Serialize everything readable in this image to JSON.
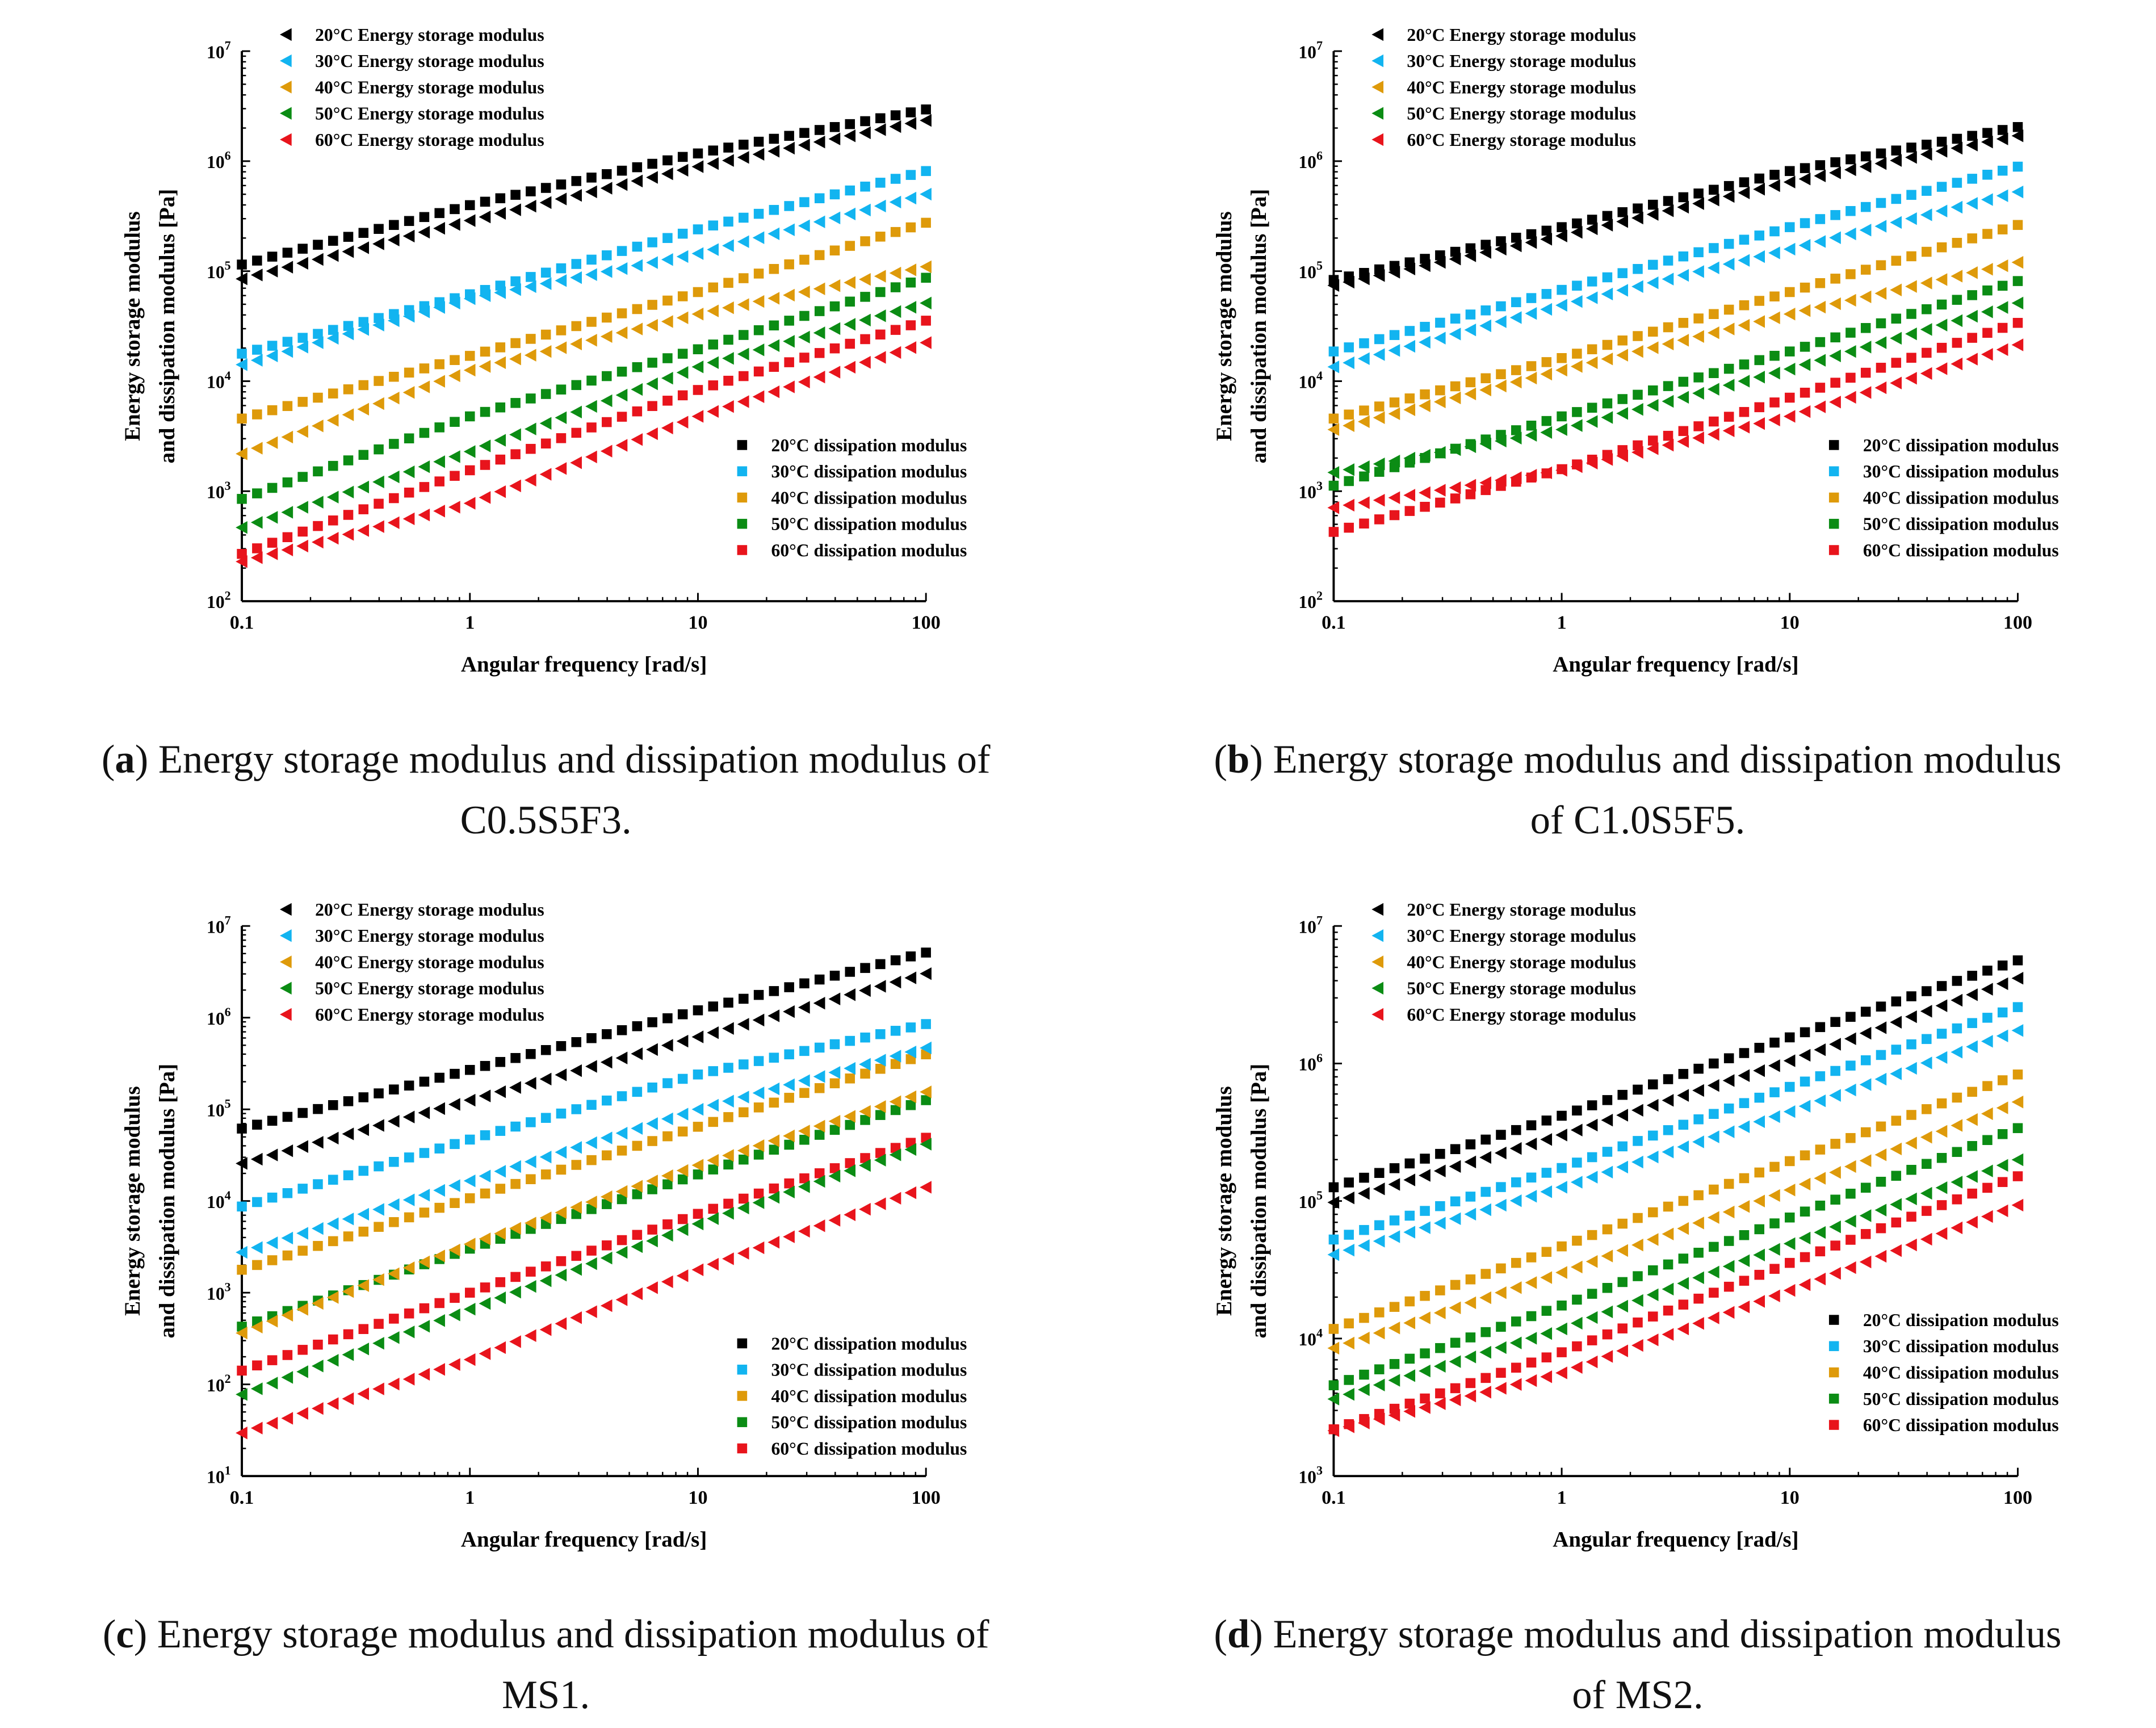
{
  "chart_data": [
    {
      "type": "scatter",
      "panel": "a",
      "caption_letter": "a",
      "caption_line1": " Energy storage modulus and dissipation modulus of",
      "caption_line2": "C0.5S5F3.",
      "xlabel": "Angular frequency [rad/s]",
      "ylabel_line1": "Energy storage modulus",
      "ylabel_line2": "and dissipation modulus [Pa]",
      "xscale": "log",
      "yscale": "log",
      "xlim": [
        0.1,
        100
      ],
      "ylim_log10": [
        2,
        7
      ],
      "x_ticks": [
        "0.1",
        "1",
        "10",
        "100"
      ],
      "y_tick_exponents": [
        "2",
        "3",
        "4",
        "5",
        "6",
        "7"
      ],
      "storage_legend_placement": "top-left",
      "dissipation_legend_placement": "bottom-right",
      "anchor_x": [
        0.1,
        1,
        10,
        100
      ],
      "series": [
        {
          "name": "20°C Energy storage modulus",
          "marker": "triangle-left",
          "color": "#000000",
          "log10_values": [
            4.93,
            5.46,
            5.95,
            6.37
          ]
        },
        {
          "name": "30°C Energy storage modulus",
          "marker": "triangle-left",
          "color": "#12b4f0",
          "log10_values": [
            4.15,
            4.75,
            5.16,
            5.7
          ]
        },
        {
          "name": "40°C Energy storage modulus",
          "marker": "triangle-left",
          "color": "#de9a0a",
          "log10_values": [
            3.34,
            4.1,
            4.61,
            5.04
          ]
        },
        {
          "name": "50°C Energy storage modulus",
          "marker": "triangle-left",
          "color": "#0b8c14",
          "log10_values": [
            2.67,
            3.36,
            4.13,
            4.71
          ]
        },
        {
          "name": "60°C Energy storage modulus",
          "marker": "triangle-left",
          "color": "#e8141c",
          "log10_values": [
            2.36,
            2.89,
            3.68,
            4.35
          ]
        },
        {
          "name": "20°C dissipation modulus",
          "marker": "square",
          "color": "#000000",
          "log10_values": [
            5.06,
            5.6,
            6.07,
            6.47
          ]
        },
        {
          "name": "30°C dissipation modulus",
          "marker": "square",
          "color": "#12b4f0",
          "log10_values": [
            4.25,
            4.79,
            5.38,
            5.91
          ]
        },
        {
          "name": "40°C dissipation modulus",
          "marker": "square",
          "color": "#de9a0a",
          "log10_values": [
            3.66,
            4.23,
            4.81,
            5.44
          ]
        },
        {
          "name": "50°C dissipation modulus",
          "marker": "square",
          "color": "#0b8c14",
          "log10_values": [
            2.93,
            3.68,
            4.29,
            4.94
          ]
        },
        {
          "name": "60°C dissipation modulus",
          "marker": "square",
          "color": "#e8141c",
          "log10_values": [
            2.43,
            3.19,
            3.92,
            4.55
          ]
        }
      ]
    },
    {
      "type": "scatter",
      "panel": "b",
      "caption_letter": "b",
      "caption_line1": " Energy storage modulus and dissipation modulus",
      "caption_line2": "of C1.0S5F5.",
      "xlabel": "Angular frequency [rad/s]",
      "ylabel_line1": "Energy storage modulus",
      "ylabel_line2": "and dissipation modulus [Pa]",
      "xscale": "log",
      "yscale": "log",
      "xlim": [
        0.1,
        100
      ],
      "ylim_log10": [
        2,
        7
      ],
      "x_ticks": [
        "0.1",
        "1",
        "10",
        "100"
      ],
      "y_tick_exponents": [
        "2",
        "3",
        "4",
        "5",
        "6",
        "7"
      ],
      "storage_legend_placement": "top-left",
      "dissipation_legend_placement": "bottom-right",
      "anchor_x": [
        0.1,
        1,
        10,
        100
      ],
      "series": [
        {
          "name": "20°C Energy storage modulus",
          "marker": "triangle-left",
          "color": "#000000",
          "log10_values": [
            4.87,
            5.32,
            5.81,
            6.23
          ]
        },
        {
          "name": "30°C Energy storage modulus",
          "marker": "triangle-left",
          "color": "#12b4f0",
          "log10_values": [
            4.13,
            4.69,
            5.2,
            5.72
          ]
        },
        {
          "name": "40°C Energy storage modulus",
          "marker": "triangle-left",
          "color": "#de9a0a",
          "log10_values": [
            3.56,
            4.1,
            4.61,
            5.08
          ]
        },
        {
          "name": "50°C Energy storage modulus",
          "marker": "triangle-left",
          "color": "#0b8c14",
          "log10_values": [
            3.17,
            3.56,
            4.11,
            4.71
          ]
        },
        {
          "name": "60°C Energy storage modulus",
          "marker": "triangle-left",
          "color": "#e8141c",
          "log10_values": [
            2.85,
            3.19,
            3.68,
            4.33
          ]
        },
        {
          "name": "20°C dissipation modulus",
          "marker": "square",
          "color": "#000000",
          "log10_values": [
            4.92,
            5.4,
            5.91,
            6.31
          ]
        },
        {
          "name": "30°C dissipation modulus",
          "marker": "square",
          "color": "#12b4f0",
          "log10_values": [
            4.27,
            4.83,
            5.4,
            5.95
          ]
        },
        {
          "name": "40°C dissipation modulus",
          "marker": "square",
          "color": "#de9a0a",
          "log10_values": [
            3.66,
            4.21,
            4.81,
            5.42
          ]
        },
        {
          "name": "50°C dissipation modulus",
          "marker": "square",
          "color": "#0b8c14",
          "log10_values": [
            3.05,
            3.68,
            4.27,
            4.91
          ]
        },
        {
          "name": "60°C dissipation modulus",
          "marker": "square",
          "color": "#e8141c",
          "log10_values": [
            2.63,
            3.2,
            3.85,
            4.53
          ]
        }
      ]
    },
    {
      "type": "scatter",
      "panel": "c",
      "caption_letter": "c",
      "caption_line1": " Energy storage modulus and dissipation modulus of",
      "caption_line2": "MS1.",
      "xlabel": "Angular frequency [rad/s]",
      "ylabel_line1": "Energy storage modulus",
      "ylabel_line2": "and dissipation modulus [Pa]",
      "xscale": "log",
      "yscale": "log",
      "xlim": [
        0.1,
        100
      ],
      "ylim_log10": [
        1,
        7
      ],
      "x_ticks": [
        "0.1",
        "1",
        "10",
        "100"
      ],
      "y_tick_exponents": [
        "1",
        "2",
        "3",
        "4",
        "5",
        "6",
        "7"
      ],
      "storage_legend_placement": "top-left",
      "dissipation_legend_placement": "bottom-right",
      "anchor_x": [
        0.1,
        1,
        10,
        100
      ],
      "series": [
        {
          "name": "20°C Energy storage modulus",
          "marker": "triangle-left",
          "color": "#000000",
          "log10_values": [
            4.41,
            5.1,
            5.79,
            6.48
          ]
        },
        {
          "name": "30°C Energy storage modulus",
          "marker": "triangle-left",
          "color": "#12b4f0",
          "log10_values": [
            3.44,
            4.22,
            5.0,
            5.67
          ]
        },
        {
          "name": "40°C Energy storage modulus",
          "marker": "triangle-left",
          "color": "#de9a0a",
          "log10_values": [
            2.56,
            3.53,
            4.39,
            5.19
          ]
        },
        {
          "name": "50°C Energy storage modulus",
          "marker": "triangle-left",
          "color": "#0b8c14",
          "log10_values": [
            1.89,
            2.82,
            3.75,
            4.62
          ]
        },
        {
          "name": "60°C Energy storage modulus",
          "marker": "triangle-left",
          "color": "#e8141c",
          "log10_values": [
            1.47,
            2.27,
            3.25,
            4.15
          ]
        },
        {
          "name": "20°C dissipation modulus",
          "marker": "square",
          "color": "#000000",
          "log10_values": [
            4.79,
            5.43,
            6.08,
            6.71
          ]
        },
        {
          "name": "30°C dissipation modulus",
          "marker": "square",
          "color": "#12b4f0",
          "log10_values": [
            3.94,
            4.67,
            5.38,
            5.93
          ]
        },
        {
          "name": "40°C dissipation modulus",
          "marker": "square",
          "color": "#de9a0a",
          "log10_values": [
            3.25,
            4.03,
            4.81,
            5.6
          ]
        },
        {
          "name": "50°C dissipation modulus",
          "marker": "square",
          "color": "#0b8c14",
          "log10_values": [
            2.63,
            3.48,
            4.29,
            5.1
          ]
        },
        {
          "name": "60°C dissipation modulus",
          "marker": "square",
          "color": "#e8141c",
          "log10_values": [
            2.15,
            3.0,
            3.86,
            4.69
          ]
        }
      ]
    },
    {
      "type": "scatter",
      "panel": "d",
      "caption_letter": "d",
      "caption_line1": " Energy storage modulus and dissipation modulus",
      "caption_line2": "of MS2.",
      "xlabel": "Angular frequency [rad/s]",
      "ylabel_line1": "Energy storage modulus",
      "ylabel_line2": "and dissipation modulus [Pa]",
      "xscale": "log",
      "yscale": "log",
      "xlim": [
        0.1,
        100
      ],
      "ylim_log10": [
        3,
        7
      ],
      "x_ticks": [
        "0.1",
        "1",
        "10",
        "100"
      ],
      "y_tick_exponents": [
        "3",
        "4",
        "5",
        "6",
        "7"
      ],
      "storage_legend_placement": "top-left",
      "dissipation_legend_placement": "bottom-right",
      "anchor_x": [
        0.1,
        1,
        10,
        100
      ],
      "series": [
        {
          "name": "20°C Energy storage modulus",
          "marker": "triangle-left",
          "color": "#000000",
          "log10_values": [
            4.99,
            5.48,
            6.02,
            6.62
          ]
        },
        {
          "name": "30°C Energy storage modulus",
          "marker": "triangle-left",
          "color": "#12b4f0",
          "log10_values": [
            4.61,
            5.1,
            5.65,
            6.24
          ]
        },
        {
          "name": "40°C Energy storage modulus",
          "marker": "triangle-left",
          "color": "#de9a0a",
          "log10_values": [
            3.93,
            4.48,
            5.08,
            5.72
          ]
        },
        {
          "name": "50°C Energy storage modulus",
          "marker": "triangle-left",
          "color": "#0b8c14",
          "log10_values": [
            3.56,
            4.07,
            4.69,
            5.3
          ]
        },
        {
          "name": "60°C Energy storage modulus",
          "marker": "triangle-left",
          "color": "#e8141c",
          "log10_values": [
            3.33,
            3.75,
            4.35,
            4.97
          ]
        },
        {
          "name": "20°C dissipation modulus",
          "marker": "square",
          "color": "#000000",
          "log10_values": [
            5.1,
            5.62,
            6.19,
            6.75
          ]
        },
        {
          "name": "30°C dissipation modulus",
          "marker": "square",
          "color": "#12b4f0",
          "log10_values": [
            4.72,
            5.24,
            5.83,
            6.41
          ]
        },
        {
          "name": "40°C dissipation modulus",
          "marker": "square",
          "color": "#de9a0a",
          "log10_values": [
            4.07,
            4.67,
            5.29,
            5.92
          ]
        },
        {
          "name": "50°C dissipation modulus",
          "marker": "square",
          "color": "#0b8c14",
          "log10_values": [
            3.66,
            4.24,
            4.88,
            5.53
          ]
        },
        {
          "name": "60°C dissipation modulus",
          "marker": "square",
          "color": "#e8141c",
          "log10_values": [
            3.34,
            3.9,
            4.55,
            5.18
          ]
        }
      ]
    }
  ]
}
